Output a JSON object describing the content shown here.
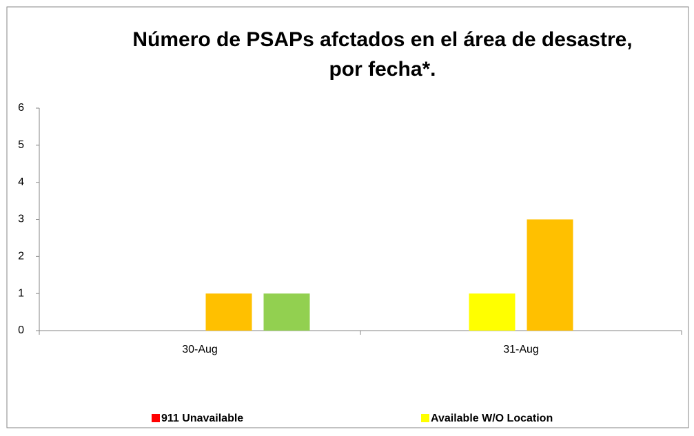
{
  "chart_data": {
    "type": "bar",
    "title": [
      "Número de PSAPs afctados en el área de desastre,",
      "por fecha*."
    ],
    "categories": [
      "30-Aug",
      "31-Aug"
    ],
    "series": [
      {
        "name": "911 Unavailable",
        "color": "#ff0000",
        "values": [
          0,
          0
        ]
      },
      {
        "name": "Available W/O Location",
        "color": "#ffff00",
        "values": [
          0,
          1
        ]
      },
      {
        "color": "#ffc000",
        "values": [
          1,
          3
        ]
      },
      {
        "color": "#92d050",
        "values": [
          1,
          0
        ]
      }
    ],
    "ylim": [
      0,
      6
    ],
    "yticks": [
      0,
      1,
      2,
      3,
      4,
      5,
      6
    ],
    "grid": false
  }
}
